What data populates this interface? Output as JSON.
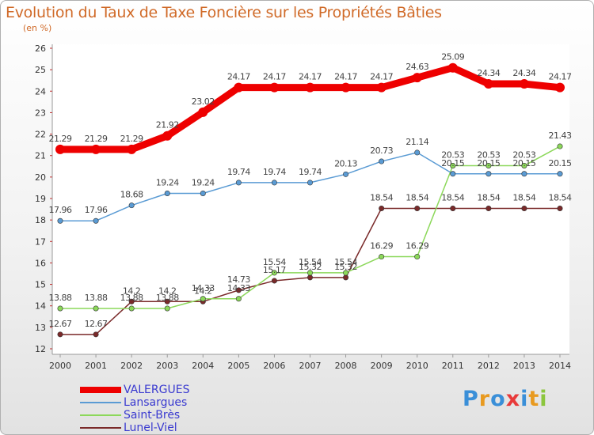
{
  "title": "Evolution du Taux de Taxe Foncière sur les Propriétés Bâties",
  "subtitle": "(en %)",
  "brand": {
    "letters": [
      "P",
      "r",
      "o",
      "x",
      "i",
      "t",
      "i"
    ],
    "colors": [
      "#3a8fd8",
      "#e89a20",
      "#3a8fd8",
      "#e83a3a",
      "#3a8fd8",
      "#e89a20",
      "#8cc63e"
    ]
  },
  "chart_data": {
    "type": "line",
    "title": "Evolution du Taux de Taxe Foncière sur les Propriétés Bâties",
    "ylabel": "(en %)",
    "xlabel": "",
    "ylim": [
      12,
      26
    ],
    "yticks": [
      12,
      13,
      14,
      15,
      16,
      17,
      18,
      19,
      20,
      21,
      22,
      23,
      24,
      25,
      26
    ],
    "x": [
      "2000",
      "2001",
      "2002",
      "2003",
      "2004",
      "2005",
      "2006",
      "2007",
      "2008",
      "2009",
      "2010",
      "2011",
      "2012",
      "2013",
      "2014"
    ],
    "series": [
      {
        "name": "VALERGUES",
        "color": "#ee0000",
        "values": [
          21.29,
          21.29,
          21.29,
          21.92,
          23.02,
          24.17,
          24.17,
          24.17,
          24.17,
          24.17,
          24.63,
          25.09,
          24.34,
          24.34,
          24.17
        ],
        "labels": [
          "21.29",
          "21.29",
          "21.29",
          "21.92",
          "23.02",
          "24.17",
          "24.17",
          "24.17",
          "24.17",
          "24.17",
          "24.63",
          "25.09",
          "24.34",
          "24.34",
          "24.17"
        ]
      },
      {
        "name": "Lansargues",
        "color": "#5a9bd4",
        "values": [
          17.96,
          17.96,
          18.68,
          19.24,
          19.24,
          19.74,
          19.74,
          19.74,
          20.13,
          20.73,
          21.14,
          20.15,
          20.15,
          20.15,
          20.15
        ],
        "labels": [
          "17.96",
          "17.96",
          "18.68",
          "19.24",
          "19.24",
          "19.74",
          "19.74",
          "19.74",
          "20.13",
          "20.73",
          "21.14",
          "20.15",
          "20.15",
          "20.15",
          "20.15"
        ]
      },
      {
        "name": "Saint-Brès",
        "color": "#8cd85a",
        "values": [
          13.88,
          13.88,
          13.88,
          13.88,
          14.33,
          14.33,
          15.54,
          15.54,
          15.54,
          16.29,
          16.29,
          20.53,
          20.53,
          20.53,
          21.43
        ],
        "labels": [
          "13.88",
          "13.88",
          "13.88",
          "13.88",
          "14.33",
          "14.33",
          "15.54",
          "15.54",
          "15.54",
          "16.29",
          "16.29",
          "20.53",
          "20.53",
          "20.53",
          "21.43"
        ]
      },
      {
        "name": "Lunel-Viel",
        "color": "#7a2a2a",
        "values": [
          12.67,
          12.67,
          14.2,
          14.2,
          14.2,
          14.73,
          15.17,
          15.32,
          15.32,
          18.54,
          18.54,
          18.54,
          18.54,
          18.54,
          18.54
        ],
        "labels": [
          "12.67",
          "12.67",
          "14.2",
          "14.2",
          "14.2",
          "14.73",
          "15.17",
          "15.32",
          "15.32",
          "18.54",
          "18.54",
          "18.54",
          "18.54",
          "18.54",
          "18.54"
        ]
      }
    ],
    "legend": [
      "VALERGUES",
      "Lansargues",
      "Saint-Brès",
      "Lunel-Viel"
    ],
    "grid": false
  }
}
